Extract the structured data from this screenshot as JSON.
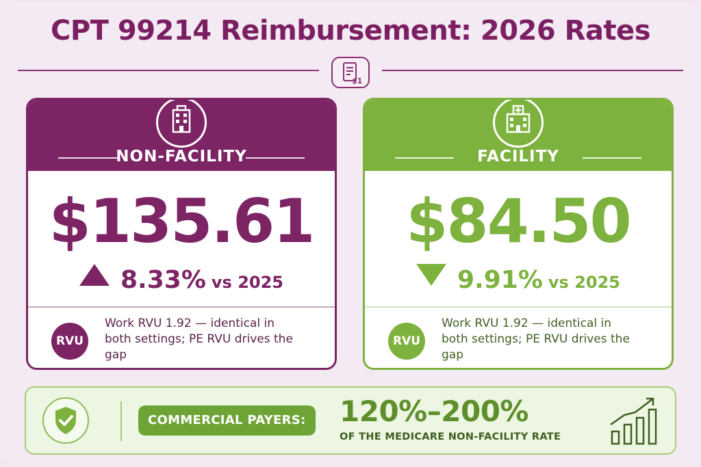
{
  "title": "CPT 99214 Reimbursement: 2026 Rates",
  "header_icon": "invoice-document-icon",
  "non_facility": {
    "label": "NON-FACILITY",
    "icon": "office-building-icon",
    "price": "$135.61",
    "direction": "up",
    "change_pct": "8.33%",
    "vs": "vs 2025",
    "rvu_badge": "RVU",
    "rvu_note": "Work RVU 1.92 — identical in both settings; PE RVU drives the gap",
    "color": "#7c2464"
  },
  "facility": {
    "label": "FACILITY",
    "icon": "hospital-icon",
    "price": "$84.50",
    "direction": "down",
    "change_pct": "9.91%",
    "vs": "vs 2025",
    "rvu_badge": "RVU",
    "rvu_note": "Work RVU 1.92 — identical in both settings; PE RVU drives the gap",
    "color": "#7eb23e"
  },
  "commercial": {
    "icon": "shield-check-icon",
    "label": "COMMERCIAL PAYERS:",
    "range": "120%–200%",
    "subtitle": "OF THE MEDICARE NON-FACILITY RATE",
    "trend_icon": "bar-chart-growth-icon"
  }
}
